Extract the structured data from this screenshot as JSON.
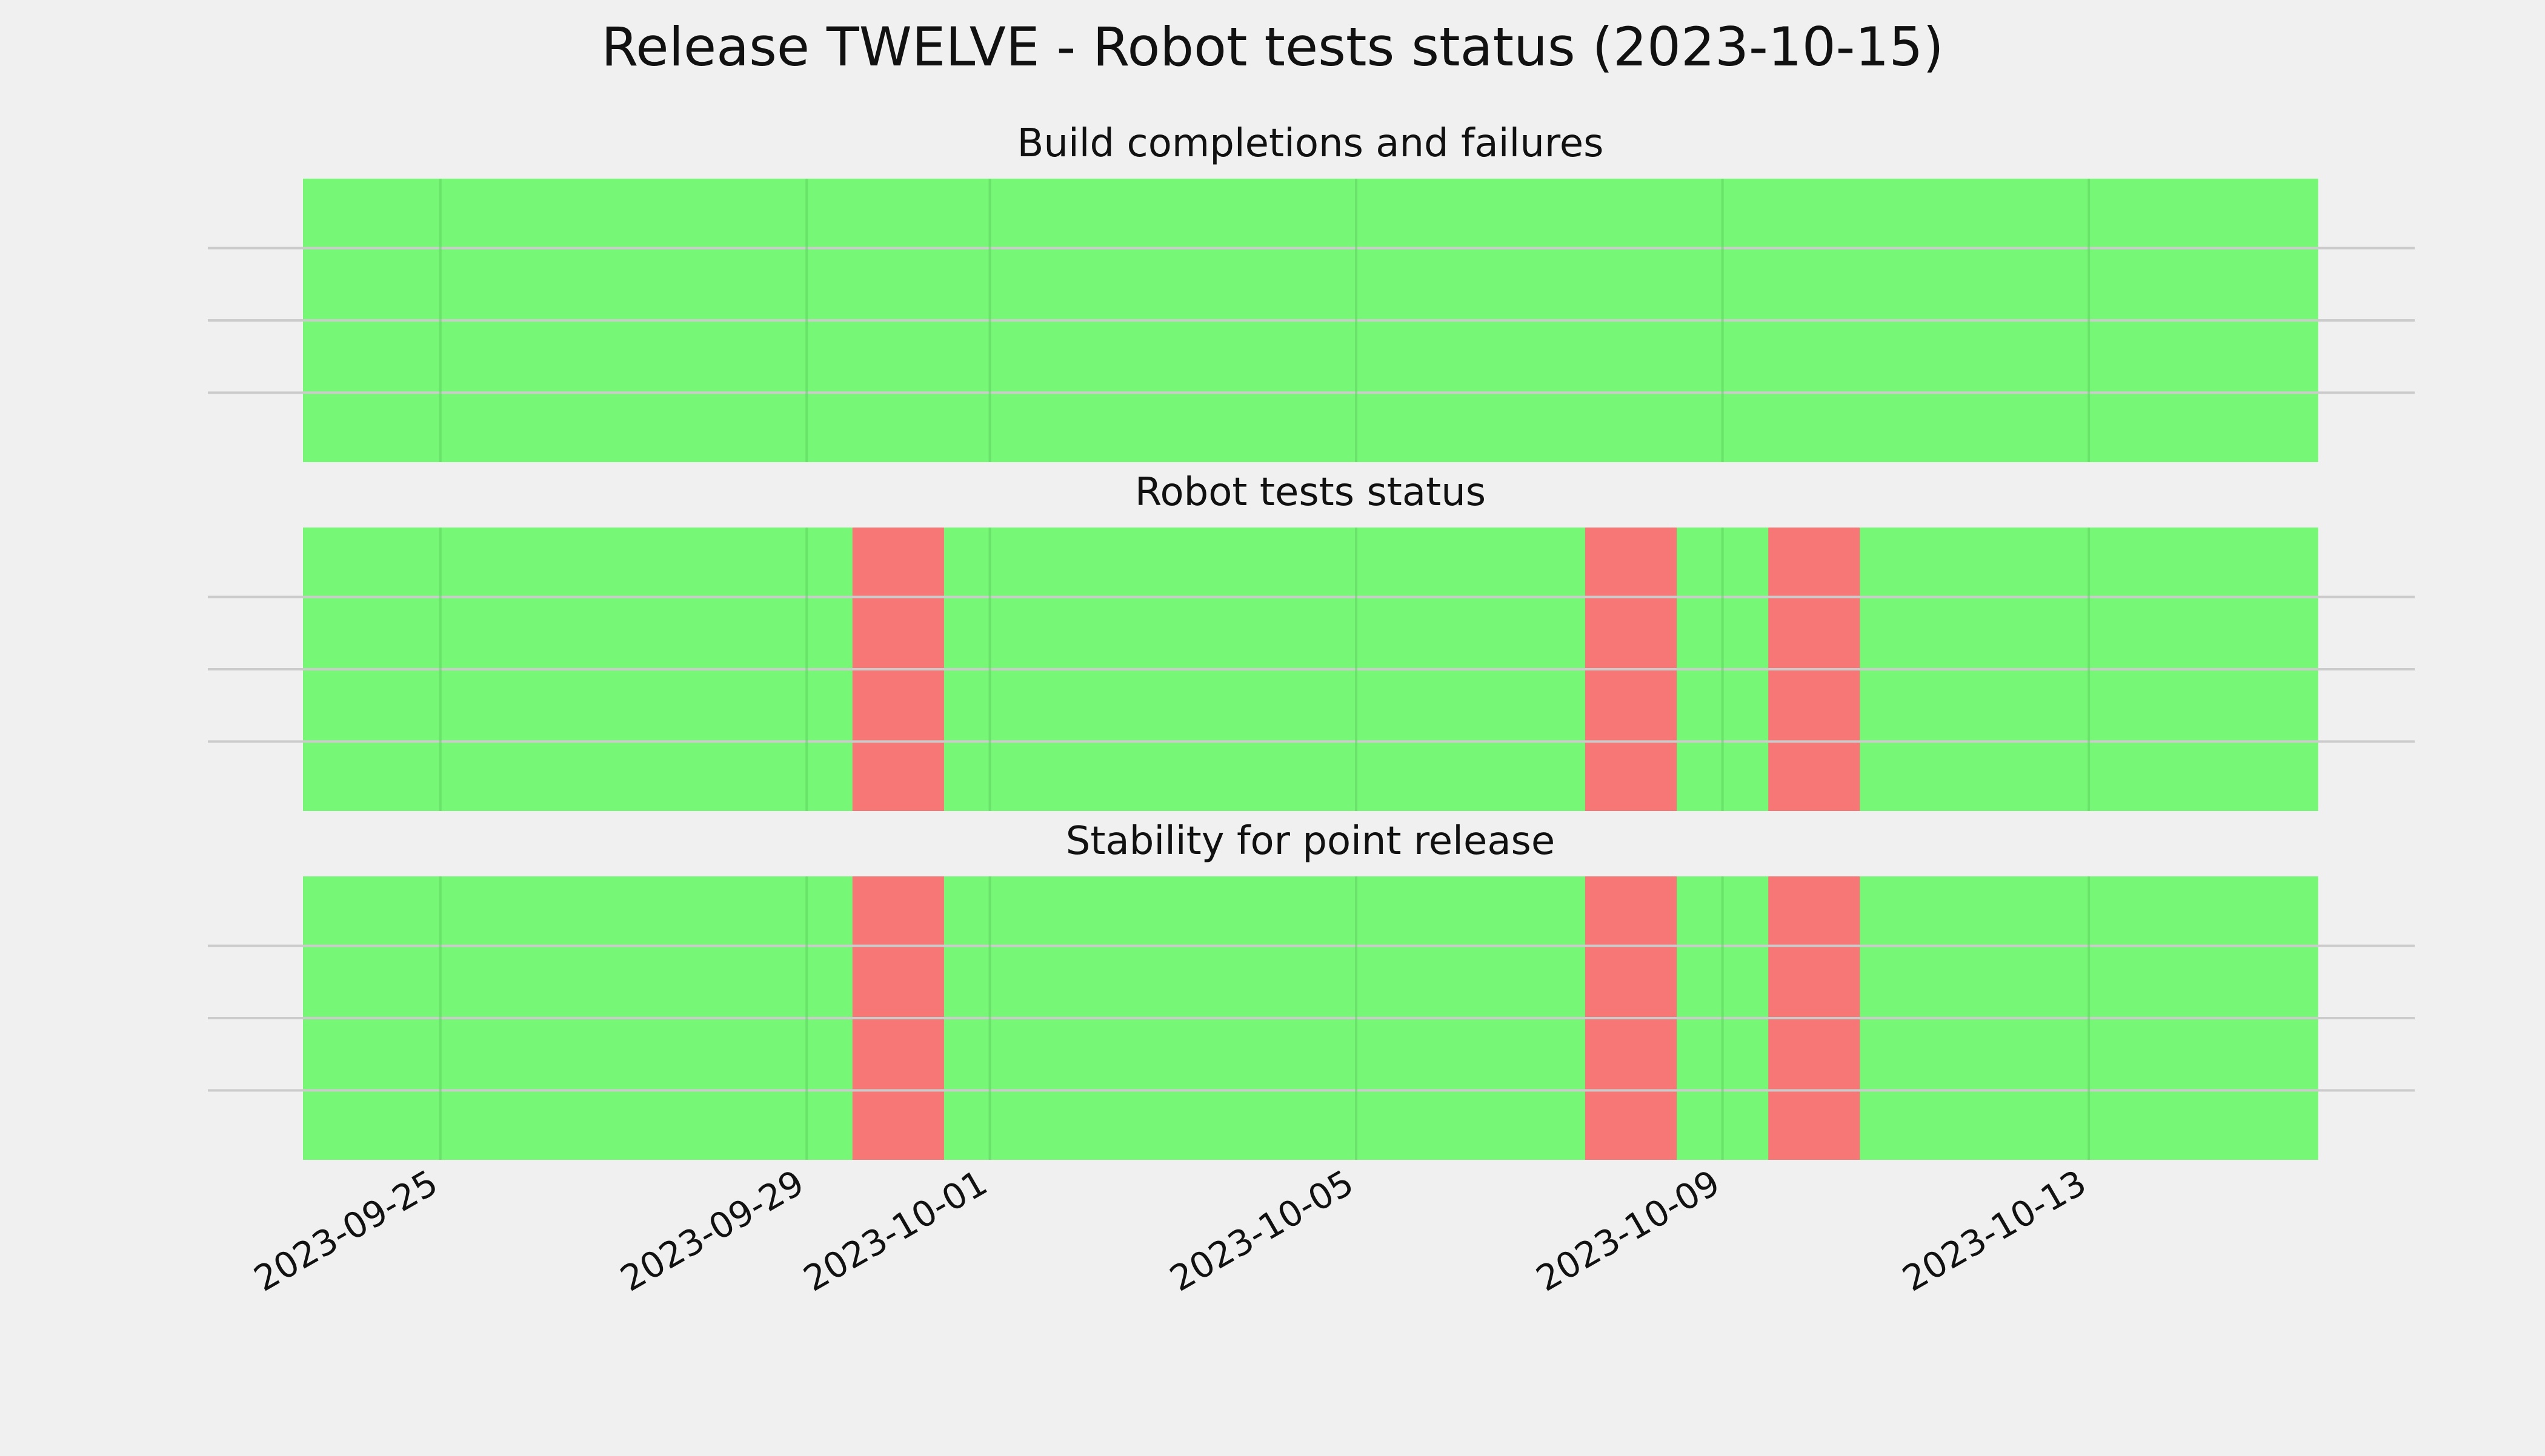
{
  "chart_data": {
    "type": "heatmap",
    "title": "Release TWELVE - Robot tests status (2023-10-15)",
    "xlabel": "",
    "ylabel": "",
    "x_axis": {
      "kind": "date",
      "range": [
        "2023-09-24",
        "2023-10-15"
      ],
      "ticks": [
        "2023-09-25",
        "2023-09-29",
        "2023-10-01",
        "2023-10-05",
        "2023-10-09",
        "2023-10-13"
      ],
      "tick_rotation_deg": 30
    },
    "y_axis": {
      "ticks_visible": false
    },
    "grid": true,
    "legend": "none",
    "colors": {
      "pass": "#76f776",
      "fail": "#f77676",
      "background": "#f0f0f0",
      "grid": "#cbcbcb"
    },
    "panels": [
      {
        "title": "Build completions and failures",
        "days": [
          {
            "date": "2023-09-24",
            "status": "pass"
          },
          {
            "date": "2023-09-25",
            "status": "pass"
          },
          {
            "date": "2023-09-26",
            "status": "pass"
          },
          {
            "date": "2023-09-27",
            "status": "pass"
          },
          {
            "date": "2023-09-28",
            "status": "pass"
          },
          {
            "date": "2023-09-29",
            "status": "pass"
          },
          {
            "date": "2023-09-30",
            "status": "pass"
          },
          {
            "date": "2023-10-01",
            "status": "pass"
          },
          {
            "date": "2023-10-02",
            "status": "pass"
          },
          {
            "date": "2023-10-03",
            "status": "pass"
          },
          {
            "date": "2023-10-04",
            "status": "pass"
          },
          {
            "date": "2023-10-05",
            "status": "pass"
          },
          {
            "date": "2023-10-06",
            "status": "pass"
          },
          {
            "date": "2023-10-07",
            "status": "pass"
          },
          {
            "date": "2023-10-08",
            "status": "pass"
          },
          {
            "date": "2023-10-09",
            "status": "pass"
          },
          {
            "date": "2023-10-10",
            "status": "pass"
          },
          {
            "date": "2023-10-11",
            "status": "pass"
          },
          {
            "date": "2023-10-12",
            "status": "pass"
          },
          {
            "date": "2023-10-13",
            "status": "pass"
          },
          {
            "date": "2023-10-14",
            "status": "pass"
          },
          {
            "date": "2023-10-15",
            "status": "pass"
          }
        ]
      },
      {
        "title": "Robot tests status",
        "days": [
          {
            "date": "2023-09-24",
            "status": "pass"
          },
          {
            "date": "2023-09-25",
            "status": "pass"
          },
          {
            "date": "2023-09-26",
            "status": "pass"
          },
          {
            "date": "2023-09-27",
            "status": "pass"
          },
          {
            "date": "2023-09-28",
            "status": "pass"
          },
          {
            "date": "2023-09-29",
            "status": "pass"
          },
          {
            "date": "2023-09-30",
            "status": "fail"
          },
          {
            "date": "2023-10-01",
            "status": "pass"
          },
          {
            "date": "2023-10-02",
            "status": "pass"
          },
          {
            "date": "2023-10-03",
            "status": "pass"
          },
          {
            "date": "2023-10-04",
            "status": "pass"
          },
          {
            "date": "2023-10-05",
            "status": "pass"
          },
          {
            "date": "2023-10-06",
            "status": "pass"
          },
          {
            "date": "2023-10-07",
            "status": "pass"
          },
          {
            "date": "2023-10-08",
            "status": "fail"
          },
          {
            "date": "2023-10-09",
            "status": "pass"
          },
          {
            "date": "2023-10-10",
            "status": "fail"
          },
          {
            "date": "2023-10-11",
            "status": "pass"
          },
          {
            "date": "2023-10-12",
            "status": "pass"
          },
          {
            "date": "2023-10-13",
            "status": "pass"
          },
          {
            "date": "2023-10-14",
            "status": "pass"
          },
          {
            "date": "2023-10-15",
            "status": "pass"
          }
        ]
      },
      {
        "title": "Stability for point release",
        "days": [
          {
            "date": "2023-09-24",
            "status": "pass"
          },
          {
            "date": "2023-09-25",
            "status": "pass"
          },
          {
            "date": "2023-09-26",
            "status": "pass"
          },
          {
            "date": "2023-09-27",
            "status": "pass"
          },
          {
            "date": "2023-09-28",
            "status": "pass"
          },
          {
            "date": "2023-09-29",
            "status": "pass"
          },
          {
            "date": "2023-09-30",
            "status": "fail"
          },
          {
            "date": "2023-10-01",
            "status": "pass"
          },
          {
            "date": "2023-10-02",
            "status": "pass"
          },
          {
            "date": "2023-10-03",
            "status": "pass"
          },
          {
            "date": "2023-10-04",
            "status": "pass"
          },
          {
            "date": "2023-10-05",
            "status": "pass"
          },
          {
            "date": "2023-10-06",
            "status": "pass"
          },
          {
            "date": "2023-10-07",
            "status": "pass"
          },
          {
            "date": "2023-10-08",
            "status": "fail"
          },
          {
            "date": "2023-10-09",
            "status": "pass"
          },
          {
            "date": "2023-10-10",
            "status": "fail"
          },
          {
            "date": "2023-10-11",
            "status": "pass"
          },
          {
            "date": "2023-10-12",
            "status": "pass"
          },
          {
            "date": "2023-10-13",
            "status": "pass"
          },
          {
            "date": "2023-10-14",
            "status": "pass"
          },
          {
            "date": "2023-10-15",
            "status": "pass"
          }
        ]
      }
    ]
  }
}
